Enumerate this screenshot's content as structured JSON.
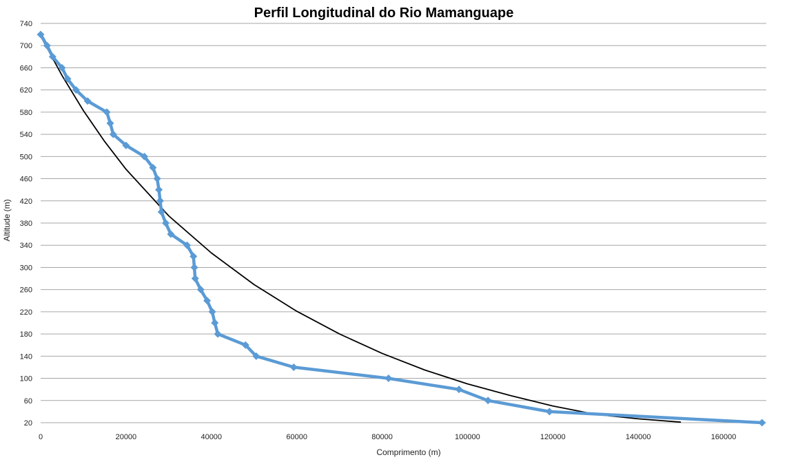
{
  "chart_data": {
    "type": "line",
    "title": "Perfil Longitudinal do Rio  Mamanguape",
    "xlabel": "Comprimento (m)",
    "ylabel": "Altitude (m)",
    "xlim": [
      0,
      170000
    ],
    "ylim": [
      20,
      740
    ],
    "xticks": [
      0,
      20000,
      40000,
      60000,
      80000,
      100000,
      120000,
      140000,
      160000
    ],
    "yticks": [
      20,
      60,
      100,
      140,
      180,
      220,
      260,
      300,
      340,
      380,
      420,
      460,
      500,
      540,
      580,
      620,
      660,
      700,
      740
    ],
    "grid": "horizontal",
    "legend": "none",
    "series": [
      {
        "color": "#5b9bd5",
        "marker": "diamond",
        "x": [
          0,
          1500,
          2800,
          5000,
          6300,
          8300,
          11000,
          15500,
          16300,
          17000,
          20000,
          24300,
          26300,
          27300,
          27700,
          28000,
          28300,
          29300,
          30500,
          34300,
          35800,
          36000,
          36200,
          37500,
          39000,
          40200,
          40800,
          41500,
          48000,
          50500,
          59300,
          81500,
          98000,
          104800,
          119200,
          169000
        ],
        "y": [
          720,
          700,
          680,
          660,
          640,
          620,
          600,
          580,
          560,
          540,
          520,
          500,
          480,
          460,
          440,
          420,
          400,
          380,
          360,
          340,
          320,
          300,
          280,
          260,
          240,
          220,
          200,
          180,
          160,
          140,
          120,
          100,
          80,
          60,
          40,
          20
        ]
      },
      {
        "color": "#000000",
        "marker": "none",
        "x": [
          0,
          5000,
          10000,
          15000,
          20000,
          30000,
          40000,
          50000,
          60000,
          70000,
          80000,
          90000,
          100000,
          110000,
          120000,
          130000,
          140000,
          150000
        ],
        "y": [
          717,
          646,
          583,
          527,
          477,
          393,
          326,
          269,
          221,
          180,
          145,
          115,
          90,
          69,
          50,
          35,
          27,
          21
        ]
      }
    ]
  }
}
